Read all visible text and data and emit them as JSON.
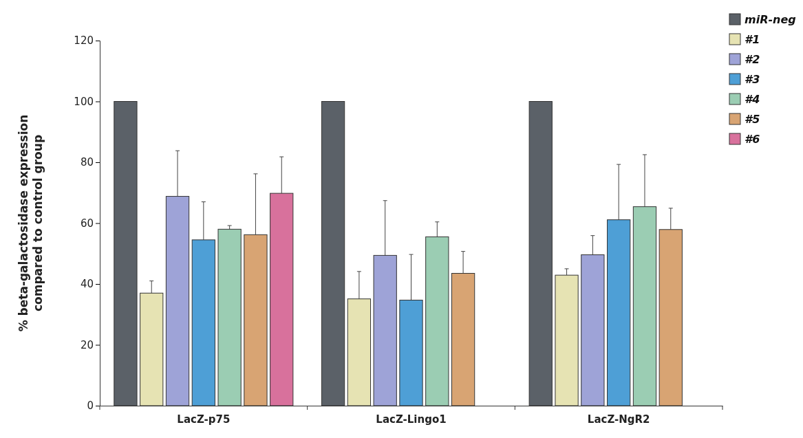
{
  "chart_data": {
    "type": "bar",
    "ylabel": "% beta-galactosidase expression\ncompared to control group",
    "categories": [
      "LacZ-p75",
      "LacZ-Lingo1",
      "LacZ-NgR2"
    ],
    "ylim": [
      0,
      120
    ],
    "yticks": [
      0,
      20,
      40,
      60,
      80,
      100,
      120
    ],
    "legend": "top right",
    "series": [
      {
        "name": "miR-neg",
        "color": "#5b6168",
        "values": [
          100,
          100,
          100
        ]
      },
      {
        "name": "#1",
        "color": "#e6e3b3",
        "values": [
          37,
          35.1,
          42.9
        ],
        "errors": [
          4,
          9,
          2.1
        ]
      },
      {
        "name": "#2",
        "color": "#9ea3d7",
        "values": [
          68.8,
          49.4,
          49.6
        ],
        "errors": [
          15,
          18,
          6.3
        ]
      },
      {
        "name": "#3",
        "color": "#4e9fd6",
        "values": [
          54.5,
          34.7,
          61.1
        ],
        "errors": [
          12.5,
          15,
          18.2
        ]
      },
      {
        "name": "#4",
        "color": "#9bcdb3",
        "values": [
          58,
          55.5,
          65.4
        ],
        "errors": [
          1.2,
          4.9,
          17.1
        ]
      },
      {
        "name": "#5",
        "color": "#d8a473",
        "values": [
          56.2,
          43.5,
          57.9
        ],
        "errors": [
          20,
          7.2,
          7
        ]
      },
      {
        "name": "#6",
        "color": "#d8719c",
        "values": [
          69.8,
          null,
          null
        ],
        "errors": [
          12,
          null,
          null
        ]
      }
    ]
  }
}
